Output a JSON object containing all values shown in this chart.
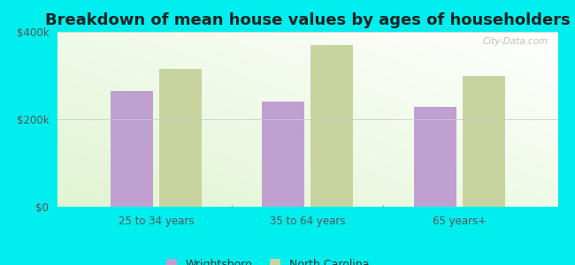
{
  "title": "Breakdown of mean house values by ages of householders",
  "categories": [
    "25 to 34 years",
    "35 to 64 years",
    "65 years+"
  ],
  "series": {
    "Wrightsboro": [
      265000,
      240000,
      228000
    ],
    "North Carolina": [
      315000,
      370000,
      298000
    ]
  },
  "bar_colors": {
    "Wrightsboro": "#c0a0d0",
    "North Carolina": "#c8d4a0"
  },
  "ylim": [
    0,
    400000
  ],
  "ytick_labels": [
    "$0",
    "$200k",
    "$400k"
  ],
  "background_color": "#00eeee",
  "bar_width": 0.28,
  "title_fontsize": 13,
  "tick_fontsize": 8.5,
  "legend_fontsize": 9,
  "watermark": "City-Data.com"
}
